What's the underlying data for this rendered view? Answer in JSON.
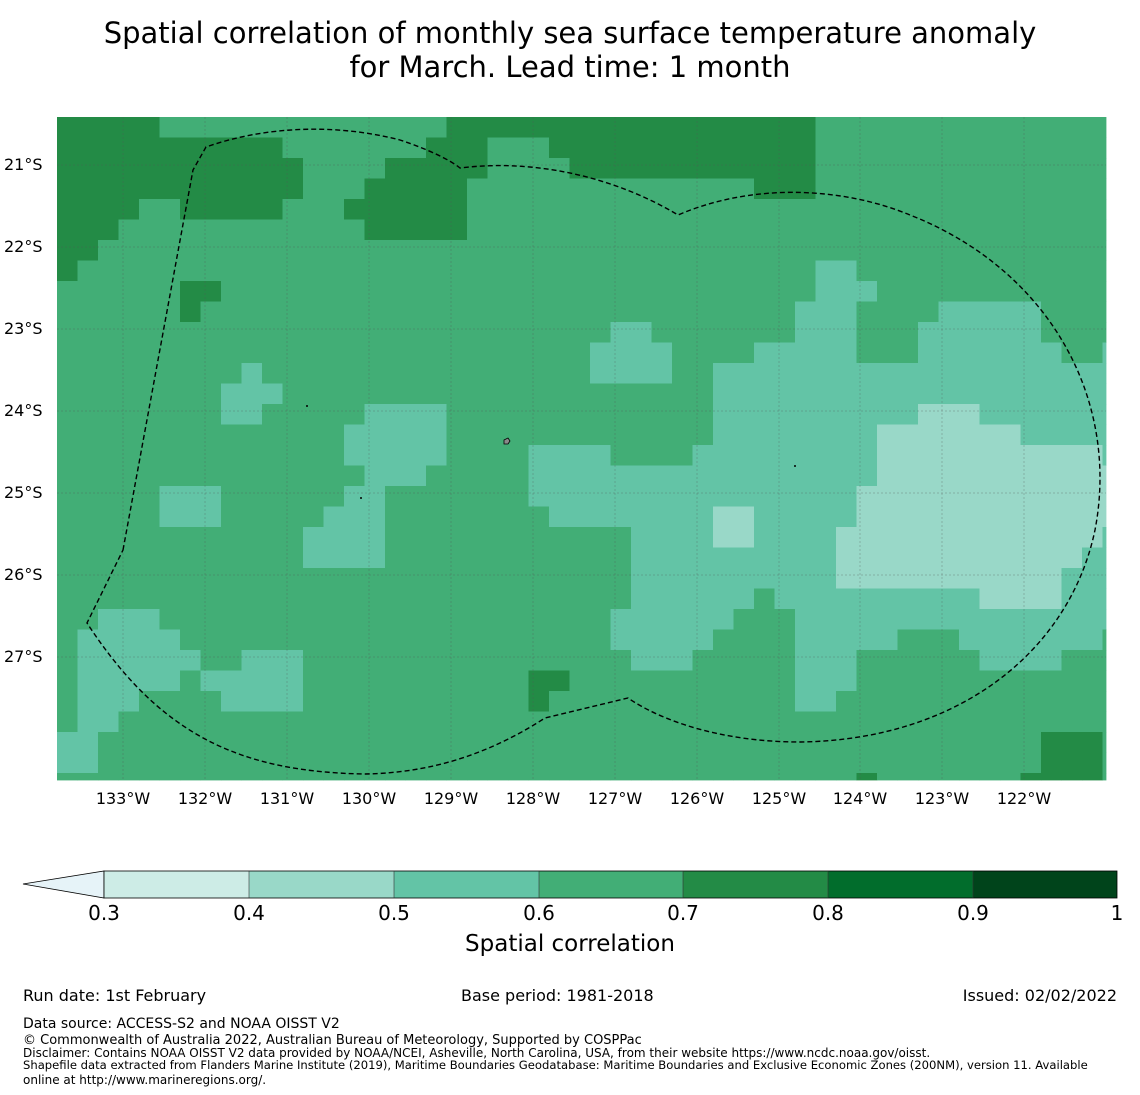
{
  "title": {
    "line1": "Spatial correlation of monthly sea surface temperature anomaly",
    "line2": "for March. Lead time: 1 month"
  },
  "map": {
    "lat_labels": [
      "21°S",
      "22°S",
      "23°S",
      "24°S",
      "25°S",
      "26°S",
      "27°S"
    ],
    "lon_labels": [
      "133°W",
      "132°W",
      "131°W",
      "130°W",
      "129°W",
      "128°W",
      "127°W",
      "126°W",
      "125°W",
      "124°W",
      "123°W",
      "122°W"
    ],
    "colors": {
      "c03": "#cdece6",
      "c04": "#99d8c8",
      "c05": "#63c4a6",
      "c06": "#42ae76",
      "c07": "#238b46",
      "c08": "#016d2c",
      "c09": "#00441b",
      "below": "#e6f3f8"
    }
  },
  "colorbar": {
    "ticks": [
      "0.3",
      "0.4",
      "0.5",
      "0.6",
      "0.7",
      "0.8",
      "0.9",
      "1"
    ],
    "label": "Spatial correlation"
  },
  "footer": {
    "run_date": "Run date: 1st February",
    "base_period": "Base period: 1981-2018",
    "issued": "Issued: 02/02/2022",
    "data_source": "Data source: ACCESS-S2 and NOAA OISST V2",
    "copyright": "© Commonwealth of Australia 2022, Australian Bureau of Meteorology, Supported by COSPPac",
    "disclaimer": "Disclaimer: Contains NOAA OISST V2 data provided by NOAA/NCEI, Asheville, North Carolina, USA, from their website https://www.ncdc.noaa.gov/oisst.",
    "shapefile1": "Shapefile data extracted from Flanders Marine Institute (2019), Maritime Boundaries Geodatabase: Maritime Boundaries and Exclusive Economic Zones (200NM), version 11. Available",
    "shapefile2": "online at http://www.marineregions.org/."
  }
}
